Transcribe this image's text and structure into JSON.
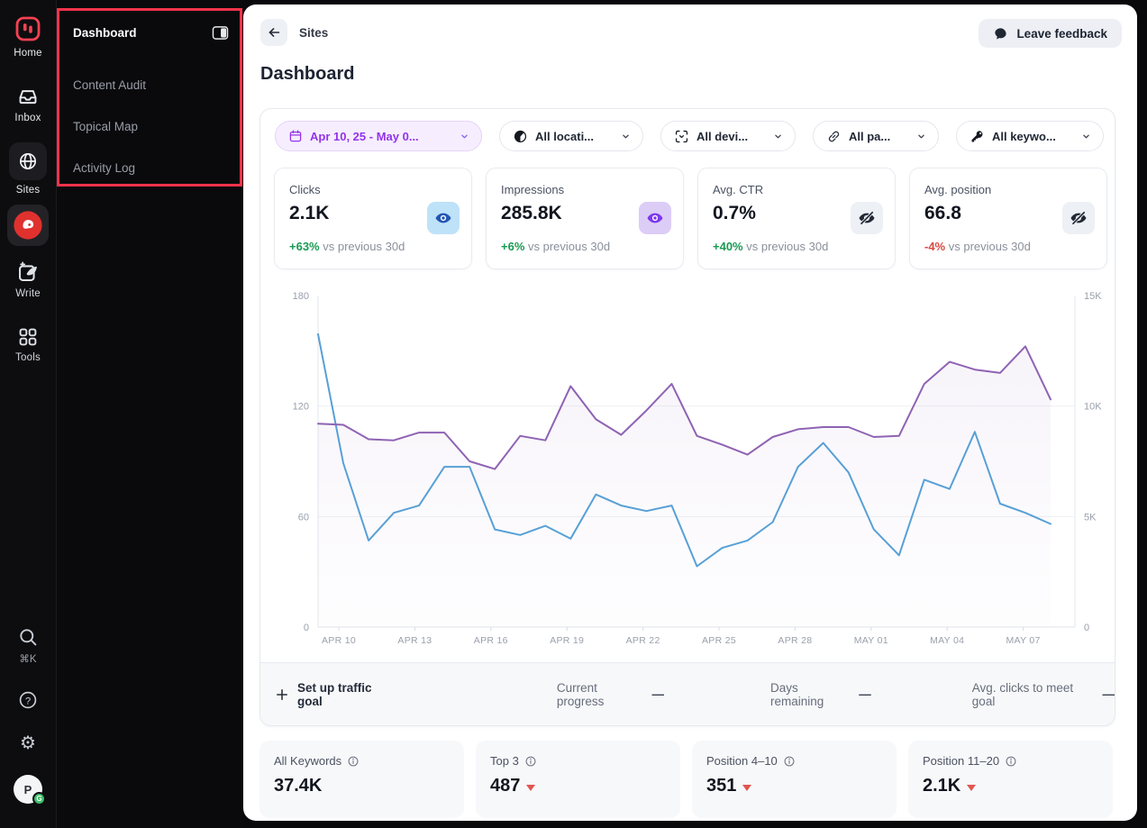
{
  "colors": {
    "accent_purple": "#9333ea",
    "annotation_red": "#f5334a",
    "brand_red": "#f64252",
    "delta_up_green": "#189a52",
    "delta_down_red": "#d7473f",
    "clicks_line": "#58a0d6",
    "impressions_line": "#8f63b4"
  },
  "rail": {
    "home_label": "Home",
    "inbox_label": "Inbox",
    "sites_label": "Sites",
    "write_label": "Write",
    "tools_label": "Tools",
    "shortcut": "⌘K",
    "avatar_initial": "P",
    "avatar_badge": "G"
  },
  "subnav": {
    "items": [
      "Dashboard",
      "Content Audit",
      "Topical Map",
      "Activity Log"
    ]
  },
  "header": {
    "breadcrumb": "Sites",
    "feedback_label": "Leave feedback",
    "title": "Dashboard"
  },
  "filters": {
    "date_range": "Apr 10, 25 - May 0...",
    "location": "All locati...",
    "device": "All devi...",
    "page": "All pa...",
    "keyword": "All keywo..."
  },
  "stats": [
    {
      "label": "Clicks",
      "value": "2.1K",
      "delta": "+63%",
      "suffix": "vs previous 30d",
      "delta_color": "#189a52",
      "icon": "eye",
      "icon_bg": "#bee2f8",
      "icon_color": "#2356b4"
    },
    {
      "label": "Impressions",
      "value": "285.8K",
      "delta": "+6%",
      "suffix": "vs previous 30d",
      "delta_color": "#189a52",
      "icon": "eye",
      "icon_bg": "#dccdf7",
      "icon_color": "#7c3aed"
    },
    {
      "label": "Avg. CTR",
      "value": "0.7%",
      "delta": "+40%",
      "suffix": "vs previous 30d",
      "delta_color": "#189a52",
      "icon": "eye-off",
      "icon_bg": "#edf0f4",
      "icon_color": "#232a36"
    },
    {
      "label": "Avg. position",
      "value": "66.8",
      "delta": "-4%",
      "suffix": "vs previous 30d",
      "delta_color": "#d7473f",
      "icon": "eye-off",
      "icon_bg": "#edf0f4",
      "icon_color": "#232a36"
    }
  ],
  "chart_data": {
    "type": "line",
    "x_labels": [
      "APR 10",
      "APR 13",
      "APR 16",
      "APR 19",
      "APR 22",
      "APR 25",
      "APR 28",
      "MAY 01",
      "MAY 04",
      "MAY 07"
    ],
    "left_axis": {
      "max": 180,
      "ticks": [
        {
          "value": 0,
          "label": "0"
        },
        {
          "value": 60,
          "label": "60"
        },
        {
          "value": 120,
          "label": "120"
        },
        {
          "value": 180,
          "label": "180"
        }
      ]
    },
    "right_axis": {
      "max": 15000,
      "ticks": [
        {
          "value": 0,
          "label": "0"
        },
        {
          "value": 5000,
          "label": "5K"
        },
        {
          "value": 10000,
          "label": "10K"
        },
        {
          "value": 15000,
          "label": "15K"
        }
      ]
    },
    "grid": "horizontal",
    "legend": "none",
    "series": [
      {
        "name": "Clicks",
        "axis": "left",
        "color": "#58a0d6",
        "values": [
          159,
          89,
          47,
          62,
          66,
          87,
          87,
          53,
          50,
          55,
          48,
          72,
          66,
          63,
          66,
          33,
          43,
          47,
          57,
          87,
          100,
          84,
          53,
          39,
          80,
          75,
          106,
          67,
          62,
          56
        ]
      },
      {
        "name": "Impressions",
        "axis": "right",
        "color": "#8f63b4",
        "values": [
          9200,
          9150,
          8500,
          8450,
          8800,
          8800,
          7500,
          7150,
          8650,
          8450,
          10900,
          9400,
          8700,
          9800,
          11000,
          8650,
          8250,
          7800,
          8600,
          8950,
          9050,
          9050,
          8600,
          8650,
          11000,
          12000,
          11650,
          11500,
          12700,
          10300
        ]
      }
    ]
  },
  "goal_bar": {
    "setup_label": "Set up traffic goal",
    "items": [
      {
        "label": "Current progress",
        "value": "—"
      },
      {
        "label": "Days remaining",
        "value": "—"
      },
      {
        "label": "Avg. clicks to meet goal",
        "value": "—"
      }
    ]
  },
  "keyword_cards": [
    {
      "label": "All Keywords",
      "value": "37.4K",
      "trend": "none"
    },
    {
      "label": "Top 3",
      "value": "487",
      "trend": "down"
    },
    {
      "label": "Position 4–10",
      "value": "351",
      "trend": "down"
    },
    {
      "label": "Position 11–20",
      "value": "2.1K",
      "trend": "down"
    }
  ]
}
